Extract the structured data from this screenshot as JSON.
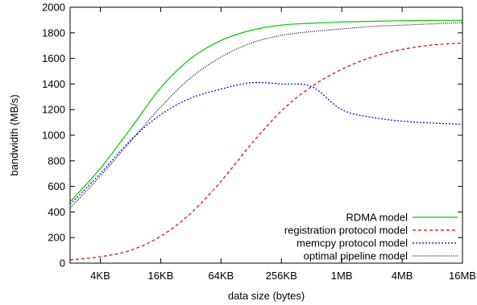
{
  "chart_data": {
    "type": "line",
    "title": "",
    "xlabel": "data size (bytes)",
    "ylabel": "bandwidth (MB/s)",
    "x_scale": "log2",
    "xlim_bytes": [
      2048,
      16777216
    ],
    "ylim": [
      0,
      2000
    ],
    "x_ticks": [
      {
        "value": 4096,
        "label": "4KB"
      },
      {
        "value": 16384,
        "label": "16KB"
      },
      {
        "value": 65536,
        "label": "64KB"
      },
      {
        "value": 262144,
        "label": "256KB"
      },
      {
        "value": 1048576,
        "label": "1MB"
      },
      {
        "value": 4194304,
        "label": "4MB"
      },
      {
        "value": 16777216,
        "label": "16MB"
      }
    ],
    "y_ticks": [
      0,
      200,
      400,
      600,
      800,
      1000,
      1200,
      1400,
      1600,
      1800,
      2000
    ],
    "grid": false,
    "legend_position": "bottom-right",
    "series": [
      {
        "name": "RDMA model",
        "color": "#00cc00",
        "dash": "solid",
        "x": [
          2048,
          4096,
          8192,
          16384,
          32768,
          65536,
          131072,
          262144,
          524288,
          1048576,
          2097152,
          4194304,
          8388608,
          16777216
        ],
        "y": [
          480,
          740,
          1050,
          1370,
          1600,
          1740,
          1820,
          1860,
          1875,
          1885,
          1890,
          1895,
          1897,
          1898
        ]
      },
      {
        "name": "registration protocol model",
        "color": "#dd0000",
        "dash": "dashed",
        "x": [
          2048,
          4096,
          8192,
          16384,
          32768,
          65536,
          131072,
          262144,
          524288,
          1048576,
          2097152,
          4194304,
          8388608,
          16777216
        ],
        "y": [
          25,
          50,
          100,
          210,
          390,
          640,
          930,
          1190,
          1380,
          1515,
          1610,
          1670,
          1705,
          1720
        ]
      },
      {
        "name": "memcpy protocol model",
        "color": "#0000dd",
        "dash": "dotted",
        "x": [
          2048,
          4096,
          8192,
          16384,
          32768,
          65536,
          131072,
          262144,
          524288,
          1048576,
          2097152,
          4194304,
          8388608,
          16777216
        ],
        "y": [
          460,
          700,
          960,
          1160,
          1290,
          1360,
          1410,
          1400,
          1380,
          1200,
          1140,
          1110,
          1095,
          1085
        ]
      },
      {
        "name": "optimal pipeline model",
        "color": "#000000",
        "dash": "fine-dotted",
        "x": [
          2048,
          4096,
          8192,
          16384,
          32768,
          65536,
          131072,
          262144,
          524288,
          1048576,
          2097152,
          4194304,
          8388608,
          16777216
        ],
        "y": [
          430,
          680,
          950,
          1220,
          1450,
          1610,
          1720,
          1780,
          1810,
          1830,
          1850,
          1860,
          1870,
          1880
        ]
      }
    ]
  }
}
